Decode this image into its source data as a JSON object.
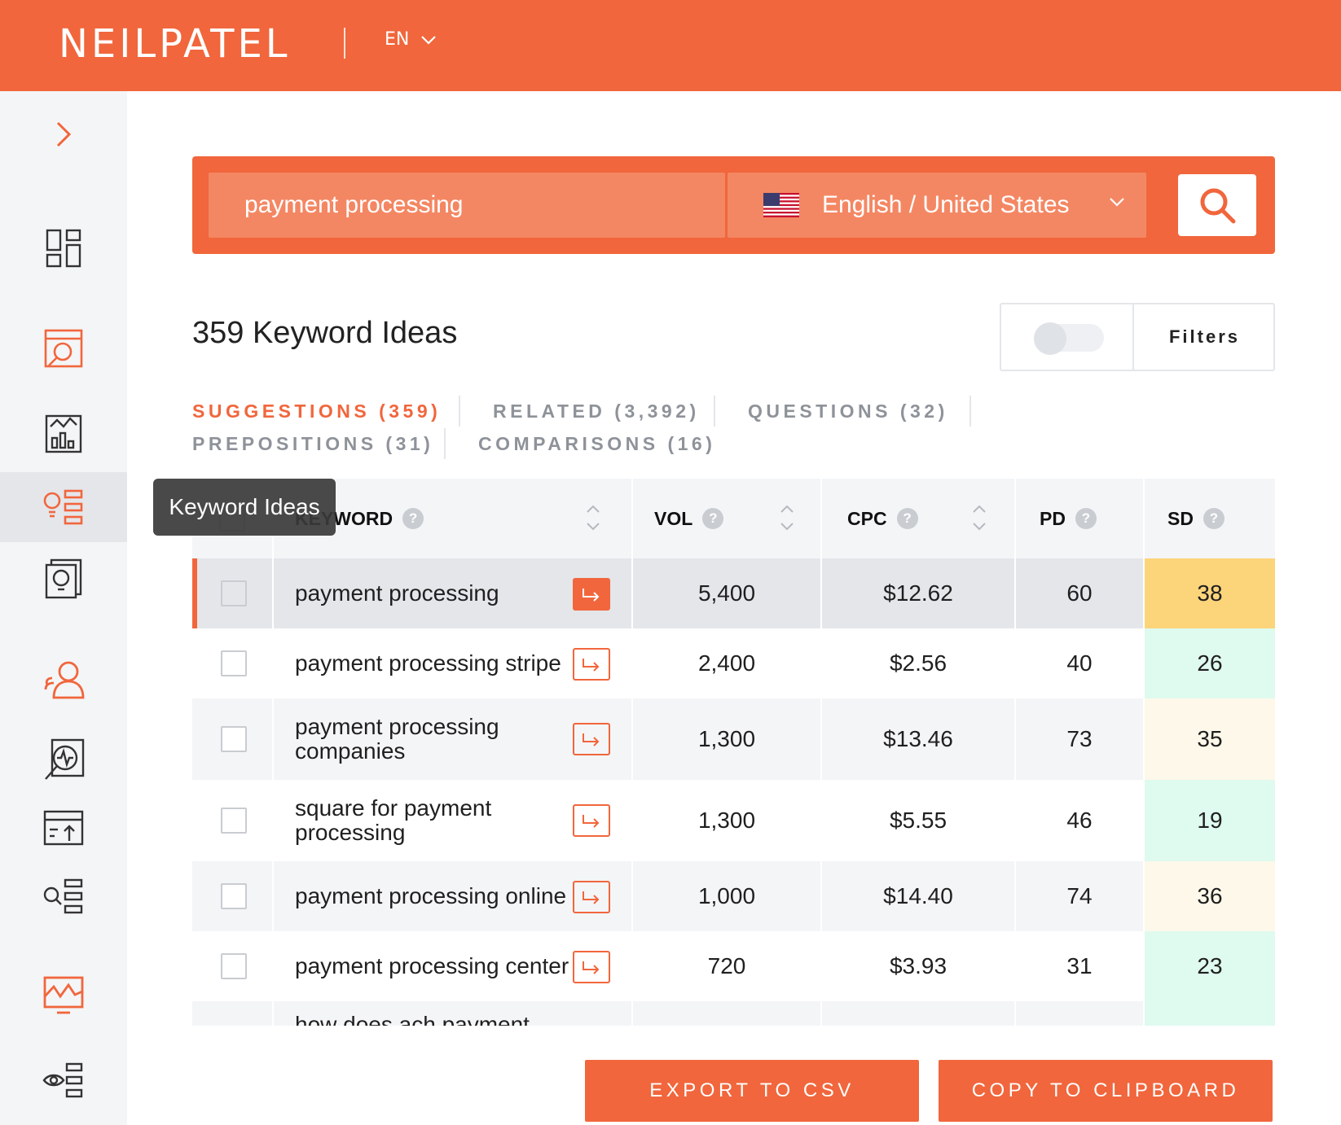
{
  "header": {
    "logo": "NEILPATEL",
    "language": "EN"
  },
  "sidebar": {
    "expand_icon": "chevron-right-icon",
    "items": [
      {
        "name": "dashboard-icon",
        "active": false
      },
      {
        "name": "site-audit-icon",
        "active": false
      },
      {
        "name": "traffic-analyzer-icon",
        "active": false
      },
      {
        "name": "keyword-ideas-icon",
        "active": true
      },
      {
        "name": "content-ideas-icon",
        "active": false
      },
      {
        "name": "backlinks-icon",
        "active": false
      },
      {
        "name": "rank-tracker-icon",
        "active": false
      },
      {
        "name": "top-pages-icon",
        "active": false
      },
      {
        "name": "keyword-search-icon",
        "active": false
      },
      {
        "name": "traffic-chart-icon",
        "active": false
      },
      {
        "name": "keyword-visibility-icon",
        "active": false
      }
    ]
  },
  "search": {
    "query": "payment processing",
    "locale": "English / United States"
  },
  "results": {
    "title": "359 Keyword Ideas",
    "filters_label": "Filters"
  },
  "tabs": [
    {
      "label": "SUGGESTIONS (359)",
      "active": true
    },
    {
      "label": "RELATED (3,392)",
      "active": false
    },
    {
      "label": "QUESTIONS (32)",
      "active": false
    },
    {
      "label": "PREPOSITIONS (31)",
      "active": false
    },
    {
      "label": "COMPARISONS (16)",
      "active": false
    }
  ],
  "tooltip": {
    "text": "Keyword Ideas"
  },
  "table": {
    "headers": {
      "keyword": "KEYWORD",
      "vol": "VOL",
      "cpc": "CPC",
      "pd": "PD",
      "sd": "SD",
      "help": "?"
    },
    "rows": [
      {
        "keyword": "payment processing",
        "vol": "5,400",
        "cpc": "$12.62",
        "pd": "60",
        "sd": "38"
      },
      {
        "keyword": "payment processing stripe",
        "vol": "2,400",
        "cpc": "$2.56",
        "pd": "40",
        "sd": "26"
      },
      {
        "keyword": "payment processing companies",
        "vol": "1,300",
        "cpc": "$13.46",
        "pd": "73",
        "sd": "35"
      },
      {
        "keyword": "square for payment processing",
        "vol": "1,300",
        "cpc": "$5.55",
        "pd": "46",
        "sd": "19"
      },
      {
        "keyword": "payment processing online",
        "vol": "1,000",
        "cpc": "$14.40",
        "pd": "74",
        "sd": "36"
      },
      {
        "keyword": "payment processing center",
        "vol": "720",
        "cpc": "$3.93",
        "pd": "31",
        "sd": "23"
      },
      {
        "keyword": "how does ach payment",
        "vol": "",
        "cpc": "",
        "pd": "",
        "sd": ""
      }
    ]
  },
  "colors": {
    "brand": "#f1663c",
    "sd_high": "#fcd47a",
    "sd_low": "#dffaef",
    "sd_mid": "#fdf8ea"
  },
  "actions": {
    "export": "EXPORT TO CSV",
    "copy": "COPY TO CLIPBOARD"
  }
}
